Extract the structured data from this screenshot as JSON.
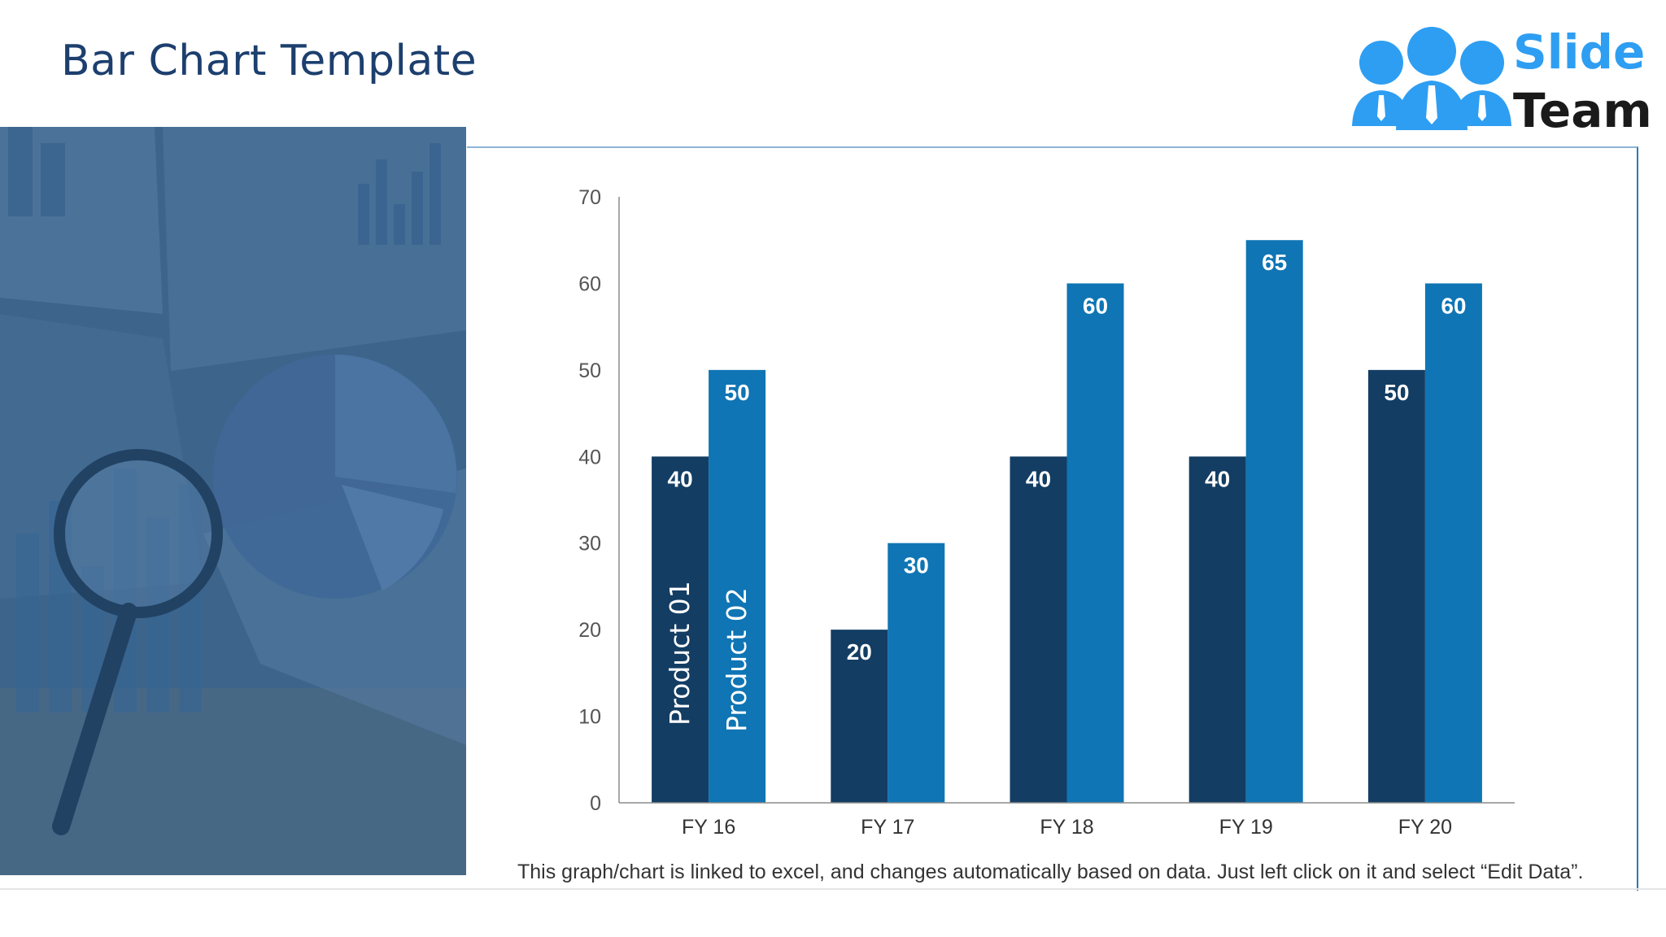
{
  "slide": {
    "title": "Bar Chart Template",
    "footnote": "This graph/chart is linked to excel, and changes automatically based on data. Just left click on it and select “Edit Data”."
  },
  "logo": {
    "line1": "Slide",
    "line2": "Team",
    "icon": "people-group-icon",
    "color_accent": "#2e9ef2",
    "color_dark": "#1a1a1a"
  },
  "colors": {
    "title": "#1c3f6e",
    "series1": "#133d63",
    "series2": "#0f75b4",
    "photo_overlay": "#2f5b86"
  },
  "chart_data": {
    "type": "bar",
    "categories": [
      "FY 16",
      "FY 17",
      "FY 18",
      "FY 19",
      "FY 20"
    ],
    "series": [
      {
        "name": "Product 01",
        "values": [
          40,
          20,
          40,
          40,
          50
        ]
      },
      {
        "name": "Product 02",
        "values": [
          50,
          30,
          60,
          65,
          60
        ]
      }
    ],
    "yticks": [
      "0",
      "10",
      "20",
      "30",
      "40",
      "50",
      "60",
      "70"
    ],
    "ylim": [
      0,
      70
    ],
    "grid": false,
    "legend": "inside-first-group-rotated",
    "data_labels": true
  }
}
